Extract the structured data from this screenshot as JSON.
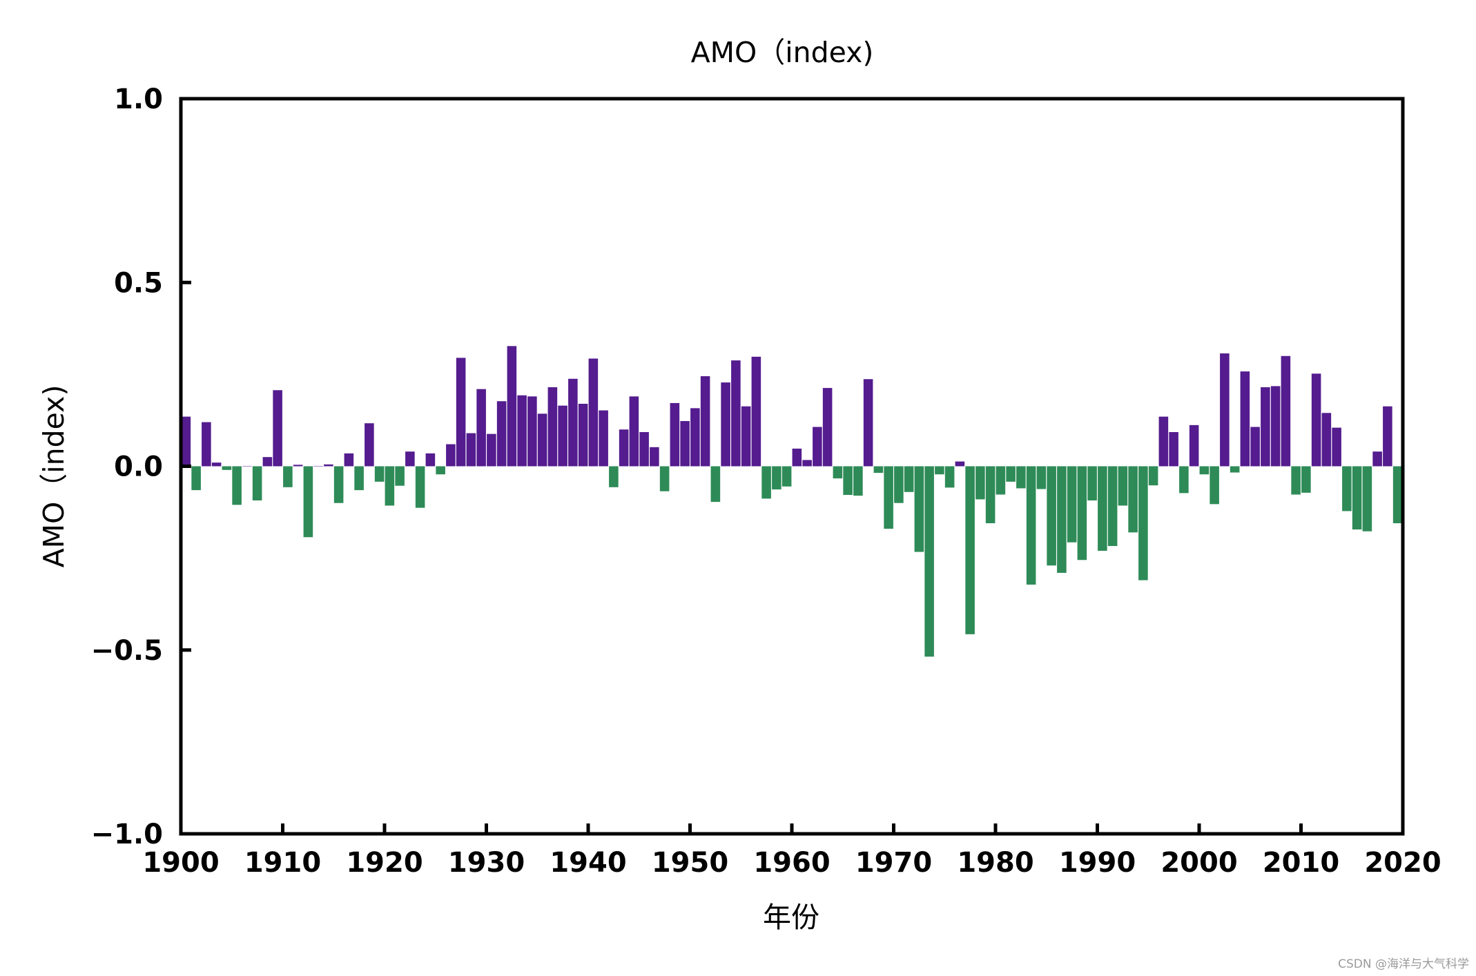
{
  "chart_data": {
    "type": "bar",
    "title": "AMO（index)",
    "xlabel": "年份",
    "ylabel": "AMO（index)",
    "xlim": [
      1900,
      2020
    ],
    "ylim": [
      -1.0,
      1.0
    ],
    "xticks": [
      "1900",
      "1910",
      "1920",
      "1930",
      "1940",
      "1950",
      "1960",
      "1970",
      "1980",
      "1990",
      "2000",
      "2010",
      "2020"
    ],
    "yticks": [
      "1.0",
      "0.5",
      "0.0",
      "−0.5",
      "−1.0"
    ],
    "ytick_values": [
      1.0,
      0.5,
      0.0,
      -0.5,
      -1.0
    ],
    "grid": false,
    "positive_color": "#541c8f",
    "negative_color": "#2e8b57",
    "x": [
      1900,
      1901,
      1902,
      1903,
      1904,
      1905,
      1906,
      1907,
      1908,
      1909,
      1910,
      1911,
      1912,
      1913,
      1914,
      1915,
      1916,
      1917,
      1918,
      1919,
      1920,
      1921,
      1922,
      1923,
      1924,
      1925,
      1926,
      1927,
      1928,
      1929,
      1930,
      1931,
      1932,
      1933,
      1934,
      1935,
      1936,
      1937,
      1938,
      1939,
      1940,
      1941,
      1942,
      1943,
      1944,
      1945,
      1946,
      1947,
      1948,
      1949,
      1950,
      1951,
      1952,
      1953,
      1954,
      1955,
      1956,
      1957,
      1958,
      1959,
      1960,
      1961,
      1962,
      1963,
      1964,
      1965,
      1966,
      1967,
      1968,
      1969,
      1970,
      1971,
      1972,
      1973,
      1974,
      1975,
      1976,
      1977,
      1978,
      1979,
      1980,
      1981,
      1982,
      1983,
      1984,
      1985,
      1986,
      1987,
      1988,
      1989,
      1990,
      1991,
      1992,
      1993,
      1994,
      1995,
      1996,
      1997,
      1998,
      1999,
      2000,
      2001,
      2002,
      2003,
      2004,
      2005,
      2006,
      2007,
      2008,
      2009,
      2010,
      2011,
      2012,
      2013,
      2014,
      2015,
      2016,
      2017,
      2018,
      2019
    ],
    "values": [
      0.135,
      -0.065,
      0.12,
      0.01,
      -0.01,
      -0.105,
      0.0,
      -0.093,
      0.025,
      0.207,
      -0.057,
      0.004,
      -0.193,
      0.0,
      0.005,
      -0.1,
      0.035,
      -0.065,
      0.117,
      -0.042,
      -0.107,
      -0.053,
      0.04,
      -0.113,
      0.035,
      -0.022,
      0.06,
      0.295,
      0.09,
      0.21,
      0.088,
      0.177,
      0.327,
      0.193,
      0.19,
      0.143,
      0.215,
      0.165,
      0.238,
      0.17,
      0.293,
      0.152,
      -0.057,
      0.1,
      0.19,
      0.093,
      0.052,
      -0.068,
      0.172,
      0.123,
      0.158,
      0.245,
      -0.097,
      0.228,
      0.288,
      0.163,
      0.298,
      -0.088,
      -0.063,
      -0.055,
      0.048,
      0.017,
      0.107,
      0.213,
      -0.033,
      -0.078,
      -0.08,
      0.237,
      -0.018,
      -0.17,
      -0.1,
      -0.07,
      -0.233,
      -0.518,
      -0.022,
      -0.058,
      0.013,
      -0.457,
      -0.09,
      -0.155,
      -0.077,
      -0.042,
      -0.06,
      -0.322,
      -0.062,
      -0.27,
      -0.29,
      -0.207,
      -0.255,
      -0.093,
      -0.23,
      -0.217,
      -0.107,
      -0.18,
      -0.31,
      -0.052,
      0.135,
      0.093,
      -0.073,
      0.112,
      -0.022,
      -0.103,
      0.307,
      -0.017,
      0.258,
      0.107,
      0.215,
      0.218,
      0.3,
      -0.077,
      -0.072,
      0.252,
      0.145,
      0.105,
      -0.122,
      -0.172,
      -0.177,
      0.04,
      0.163,
      -0.155
    ]
  },
  "watermark": "CSDN @海洋与大气科学"
}
